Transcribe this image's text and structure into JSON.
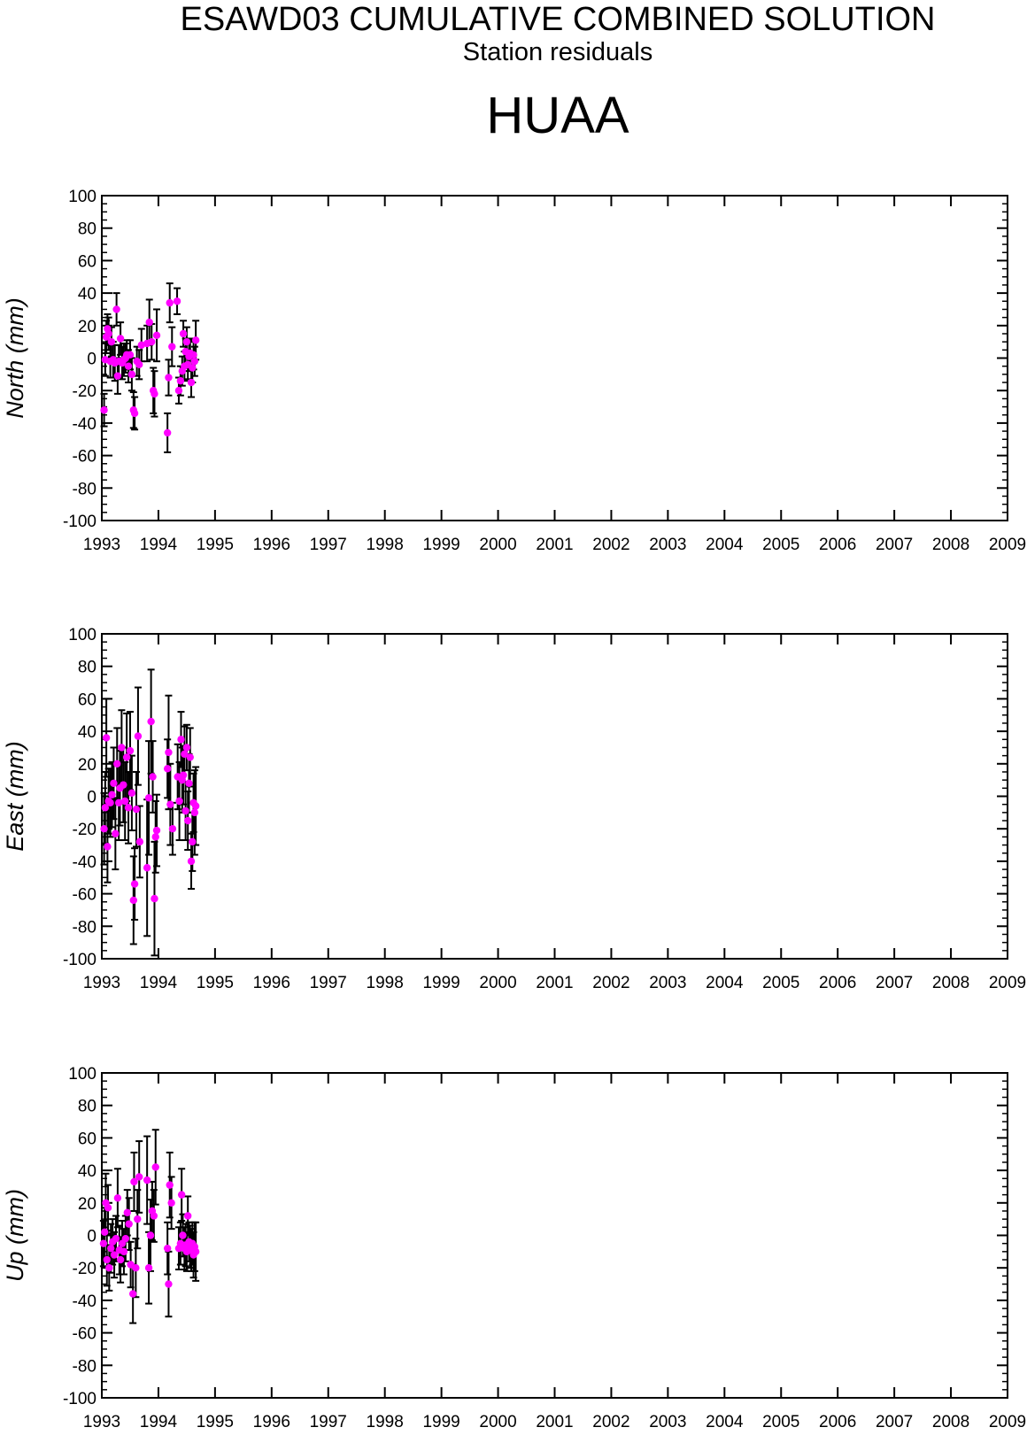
{
  "header": {
    "title": "ESAWD03 CUMULATIVE COMBINED SOLUTION",
    "subtitle": "Station residuals",
    "station": "HUAA"
  },
  "colors": {
    "point": "#ff00ff",
    "errorbar": "#000000",
    "axis": "#000000"
  },
  "chart_data": [
    {
      "type": "scatter",
      "ylabel": "North (mm)",
      "ylim": [
        -100,
        100
      ],
      "xlim": [
        1993,
        2009
      ],
      "xticks": [
        1993,
        1994,
        1995,
        1996,
        1997,
        1998,
        1999,
        2000,
        2001,
        2002,
        2003,
        2004,
        2005,
        2006,
        2007,
        2008,
        2009
      ],
      "yticks": [
        100,
        80,
        60,
        40,
        20,
        0,
        -20,
        -40,
        -60,
        -80,
        -100
      ],
      "points": [
        {
          "x": 1993.04,
          "y": -32,
          "err": 10
        },
        {
          "x": 1993.06,
          "y": -1,
          "err": 10
        },
        {
          "x": 1993.08,
          "y": 13,
          "err": 10
        },
        {
          "x": 1993.1,
          "y": 18,
          "err": 9
        },
        {
          "x": 1993.12,
          "y": 15,
          "err": 10
        },
        {
          "x": 1993.15,
          "y": -2,
          "err": 10
        },
        {
          "x": 1993.17,
          "y": 10,
          "err": 9
        },
        {
          "x": 1993.2,
          "y": -1,
          "err": 11
        },
        {
          "x": 1993.23,
          "y": -3,
          "err": 11
        },
        {
          "x": 1993.26,
          "y": 30,
          "err": 10
        },
        {
          "x": 1993.28,
          "y": -11,
          "err": 11
        },
        {
          "x": 1993.3,
          "y": -2,
          "err": 10
        },
        {
          "x": 1993.33,
          "y": 12,
          "err": 10
        },
        {
          "x": 1993.36,
          "y": -3,
          "err": 10
        },
        {
          "x": 1993.39,
          "y": -1,
          "err": 10
        },
        {
          "x": 1993.42,
          "y": 0,
          "err": 9
        },
        {
          "x": 1993.44,
          "y": 2,
          "err": 9
        },
        {
          "x": 1993.47,
          "y": -5,
          "err": 10
        },
        {
          "x": 1993.5,
          "y": 2,
          "err": 9
        },
        {
          "x": 1993.53,
          "y": -10,
          "err": 10
        },
        {
          "x": 1993.56,
          "y": -32,
          "err": 11
        },
        {
          "x": 1993.58,
          "y": -34,
          "err": 10
        },
        {
          "x": 1993.62,
          "y": -2,
          "err": 9
        },
        {
          "x": 1993.66,
          "y": -4,
          "err": 9
        },
        {
          "x": 1993.7,
          "y": 8,
          "err": 10
        },
        {
          "x": 1993.8,
          "y": 9,
          "err": 11
        },
        {
          "x": 1993.84,
          "y": 22,
          "err": 14
        },
        {
          "x": 1993.88,
          "y": 10,
          "err": 11
        },
        {
          "x": 1993.91,
          "y": -20,
          "err": 14
        },
        {
          "x": 1993.93,
          "y": -22,
          "err": 14
        },
        {
          "x": 1993.97,
          "y": 14,
          "err": 16
        },
        {
          "x": 1994.16,
          "y": -46,
          "err": 12
        },
        {
          "x": 1994.18,
          "y": -12,
          "err": 11
        },
        {
          "x": 1994.2,
          "y": 34,
          "err": 12
        },
        {
          "x": 1994.24,
          "y": 7,
          "err": 12
        },
        {
          "x": 1994.33,
          "y": 35,
          "err": 8
        },
        {
          "x": 1994.36,
          "y": -20,
          "err": 8
        },
        {
          "x": 1994.39,
          "y": -14,
          "err": 9
        },
        {
          "x": 1994.42,
          "y": -8,
          "err": 9
        },
        {
          "x": 1994.44,
          "y": 15,
          "err": 8
        },
        {
          "x": 1994.46,
          "y": -5,
          "err": 9
        },
        {
          "x": 1994.48,
          "y": 4,
          "err": 8
        },
        {
          "x": 1994.5,
          "y": 10,
          "err": 9
        },
        {
          "x": 1994.52,
          "y": -4,
          "err": 9
        },
        {
          "x": 1994.54,
          "y": 1,
          "err": 9
        },
        {
          "x": 1994.56,
          "y": 3,
          "err": 9
        },
        {
          "x": 1994.58,
          "y": -15,
          "err": 9
        },
        {
          "x": 1994.6,
          "y": -6,
          "err": 9
        },
        {
          "x": 1994.62,
          "y": 2,
          "err": 9
        },
        {
          "x": 1994.64,
          "y": -2,
          "err": 9
        },
        {
          "x": 1994.66,
          "y": 11,
          "err": 12
        }
      ]
    },
    {
      "type": "scatter",
      "ylabel": "East (mm)",
      "ylim": [
        -100,
        100
      ],
      "xlim": [
        1993,
        2009
      ],
      "xticks": [
        1993,
        1994,
        1995,
        1996,
        1997,
        1998,
        1999,
        2000,
        2001,
        2002,
        2003,
        2004,
        2005,
        2006,
        2007,
        2008,
        2009
      ],
      "yticks": [
        100,
        80,
        60,
        40,
        20,
        0,
        -20,
        -40,
        -60,
        -80,
        -100
      ],
      "points": [
        {
          "x": 1993.04,
          "y": -20,
          "err": 22
        },
        {
          "x": 1993.06,
          "y": -7,
          "err": 22
        },
        {
          "x": 1993.08,
          "y": 36,
          "err": 24
        },
        {
          "x": 1993.1,
          "y": -31,
          "err": 22
        },
        {
          "x": 1993.12,
          "y": -3,
          "err": 20
        },
        {
          "x": 1993.15,
          "y": -4,
          "err": 21
        },
        {
          "x": 1993.18,
          "y": 1,
          "err": 20
        },
        {
          "x": 1993.21,
          "y": 8,
          "err": 22
        },
        {
          "x": 1993.24,
          "y": -23,
          "err": 22
        },
        {
          "x": 1993.27,
          "y": 20,
          "err": 22
        },
        {
          "x": 1993.3,
          "y": -4,
          "err": 23
        },
        {
          "x": 1993.32,
          "y": 5,
          "err": 23
        },
        {
          "x": 1993.35,
          "y": 30,
          "err": 23
        },
        {
          "x": 1993.38,
          "y": 7,
          "err": 23
        },
        {
          "x": 1993.41,
          "y": -3,
          "err": 24
        },
        {
          "x": 1993.44,
          "y": 24,
          "err": 27
        },
        {
          "x": 1993.47,
          "y": -7,
          "err": 22
        },
        {
          "x": 1993.5,
          "y": 28,
          "err": 24
        },
        {
          "x": 1993.53,
          "y": 2,
          "err": 23
        },
        {
          "x": 1993.56,
          "y": -64,
          "err": 27
        },
        {
          "x": 1993.58,
          "y": -54,
          "err": 22
        },
        {
          "x": 1993.61,
          "y": -8,
          "err": 23
        },
        {
          "x": 1993.64,
          "y": 37,
          "err": 30
        },
        {
          "x": 1993.67,
          "y": -28,
          "err": 22
        },
        {
          "x": 1993.8,
          "y": -44,
          "err": 42
        },
        {
          "x": 1993.83,
          "y": -1,
          "err": 35
        },
        {
          "x": 1993.87,
          "y": 46,
          "err": 32
        },
        {
          "x": 1993.9,
          "y": 12,
          "err": 22
        },
        {
          "x": 1993.93,
          "y": -63,
          "err": 35
        },
        {
          "x": 1993.95,
          "y": -25,
          "err": 22
        },
        {
          "x": 1993.97,
          "y": -21,
          "err": 22
        },
        {
          "x": 1994.16,
          "y": 17,
          "err": 18
        },
        {
          "x": 1994.18,
          "y": 27,
          "err": 35
        },
        {
          "x": 1994.21,
          "y": -5,
          "err": 25
        },
        {
          "x": 1994.25,
          "y": -20,
          "err": 16
        },
        {
          "x": 1994.34,
          "y": 12,
          "err": 20
        },
        {
          "x": 1994.37,
          "y": -3,
          "err": 24
        },
        {
          "x": 1994.4,
          "y": 35,
          "err": 17
        },
        {
          "x": 1994.42,
          "y": 10,
          "err": 20
        },
        {
          "x": 1994.44,
          "y": 13,
          "err": 18
        },
        {
          "x": 1994.46,
          "y": 26,
          "err": 17
        },
        {
          "x": 1994.48,
          "y": -9,
          "err": 18
        },
        {
          "x": 1994.5,
          "y": 30,
          "err": 14
        },
        {
          "x": 1994.52,
          "y": -15,
          "err": 18
        },
        {
          "x": 1994.54,
          "y": 8,
          "err": 18
        },
        {
          "x": 1994.56,
          "y": 24,
          "err": 18
        },
        {
          "x": 1994.58,
          "y": -40,
          "err": 17
        },
        {
          "x": 1994.6,
          "y": -28,
          "err": 18
        },
        {
          "x": 1994.62,
          "y": -4,
          "err": 18
        },
        {
          "x": 1994.64,
          "y": -10,
          "err": 26
        },
        {
          "x": 1994.66,
          "y": -6,
          "err": 24
        }
      ]
    },
    {
      "type": "scatter",
      "ylabel": "Up (mm)",
      "ylim": [
        -100,
        100
      ],
      "xlim": [
        1993,
        2009
      ],
      "xticks": [
        1993,
        1994,
        1995,
        1996,
        1997,
        1998,
        1999,
        2000,
        2001,
        2002,
        2003,
        2004,
        2005,
        2006,
        2007,
        2008,
        2009
      ],
      "yticks": [
        100,
        80,
        60,
        40,
        20,
        0,
        -20,
        -40,
        -60,
        -80,
        -100
      ],
      "points": [
        {
          "x": 1993.03,
          "y": -5,
          "err": 14
        },
        {
          "x": 1993.05,
          "y": 2,
          "err": 15
        },
        {
          "x": 1993.07,
          "y": 20,
          "err": 18
        },
        {
          "x": 1993.09,
          "y": -15,
          "err": 16
        },
        {
          "x": 1993.11,
          "y": 17,
          "err": 14
        },
        {
          "x": 1993.13,
          "y": -20,
          "err": 14
        },
        {
          "x": 1993.16,
          "y": -8,
          "err": 15
        },
        {
          "x": 1993.19,
          "y": -4,
          "err": 14
        },
        {
          "x": 1993.22,
          "y": -12,
          "err": 14
        },
        {
          "x": 1993.25,
          "y": -2,
          "err": 14
        },
        {
          "x": 1993.28,
          "y": 23,
          "err": 18
        },
        {
          "x": 1993.31,
          "y": -9,
          "err": 15
        },
        {
          "x": 1993.33,
          "y": -15,
          "err": 14
        },
        {
          "x": 1993.36,
          "y": -5,
          "err": 14
        },
        {
          "x": 1993.39,
          "y": -10,
          "err": 14
        },
        {
          "x": 1993.42,
          "y": -2,
          "err": 14
        },
        {
          "x": 1993.45,
          "y": 14,
          "err": 14
        },
        {
          "x": 1993.48,
          "y": 7,
          "err": 16
        },
        {
          "x": 1993.51,
          "y": -18,
          "err": 14
        },
        {
          "x": 1993.55,
          "y": -36,
          "err": 18
        },
        {
          "x": 1993.57,
          "y": 33,
          "err": 18
        },
        {
          "x": 1993.6,
          "y": -20,
          "err": 18
        },
        {
          "x": 1993.63,
          "y": 10,
          "err": 18
        },
        {
          "x": 1993.66,
          "y": 36,
          "err": 22
        },
        {
          "x": 1993.8,
          "y": 34,
          "err": 27
        },
        {
          "x": 1993.83,
          "y": -20,
          "err": 22
        },
        {
          "x": 1993.86,
          "y": 0,
          "err": 22
        },
        {
          "x": 1993.89,
          "y": 15,
          "err": 18
        },
        {
          "x": 1993.92,
          "y": 12,
          "err": 16
        },
        {
          "x": 1993.95,
          "y": 42,
          "err": 23
        },
        {
          "x": 1994.16,
          "y": -8,
          "err": 16
        },
        {
          "x": 1994.18,
          "y": -30,
          "err": 20
        },
        {
          "x": 1994.2,
          "y": 31,
          "err": 20
        },
        {
          "x": 1994.23,
          "y": 20,
          "err": 16
        },
        {
          "x": 1994.36,
          "y": -8,
          "err": 13
        },
        {
          "x": 1994.39,
          "y": -5,
          "err": 13
        },
        {
          "x": 1994.41,
          "y": 25,
          "err": 16
        },
        {
          "x": 1994.43,
          "y": 0,
          "err": 13
        },
        {
          "x": 1994.46,
          "y": -8,
          "err": 13
        },
        {
          "x": 1994.48,
          "y": -6,
          "err": 13
        },
        {
          "x": 1994.5,
          "y": -10,
          "err": 12
        },
        {
          "x": 1994.52,
          "y": 12,
          "err": 12
        },
        {
          "x": 1994.54,
          "y": -4,
          "err": 12
        },
        {
          "x": 1994.56,
          "y": -7,
          "err": 13
        },
        {
          "x": 1994.58,
          "y": -9,
          "err": 13
        },
        {
          "x": 1994.6,
          "y": -5,
          "err": 13
        },
        {
          "x": 1994.62,
          "y": -12,
          "err": 14
        },
        {
          "x": 1994.64,
          "y": -7,
          "err": 15
        },
        {
          "x": 1994.66,
          "y": -10,
          "err": 18
        }
      ]
    }
  ]
}
